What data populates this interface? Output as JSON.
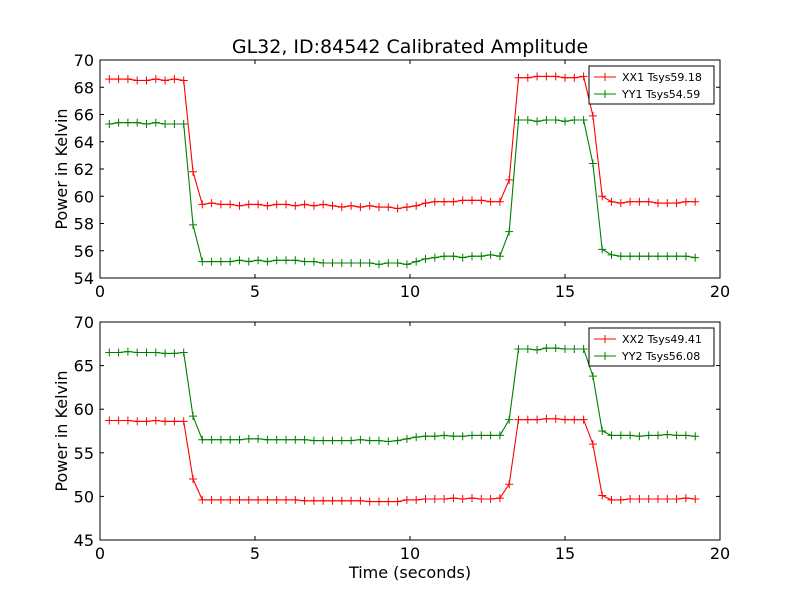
{
  "title": "GL32, ID:84542 Calibrated Amplitude",
  "colors": {
    "red": "#ff0000",
    "green": "#008000",
    "axes": "#000000"
  },
  "chart_data": [
    {
      "type": "line",
      "ylabel": "Power in Kelvin",
      "xlabel": "",
      "xlim": [
        0,
        20
      ],
      "ylim": [
        54,
        70
      ],
      "xticks": [
        0,
        5,
        10,
        15,
        20
      ],
      "yticks": [
        54,
        56,
        58,
        60,
        62,
        64,
        66,
        68,
        70
      ],
      "legend_position": "top-right",
      "x": [
        0.3,
        0.6,
        0.9,
        1.2,
        1.5,
        1.8,
        2.1,
        2.4,
        2.7,
        3.0,
        3.3,
        3.6,
        3.9,
        4.2,
        4.5,
        4.8,
        5.1,
        5.4,
        5.7,
        6.0,
        6.3,
        6.6,
        6.9,
        7.2,
        7.5,
        7.8,
        8.1,
        8.4,
        8.7,
        9.0,
        9.3,
        9.6,
        9.9,
        10.2,
        10.5,
        10.8,
        11.1,
        11.4,
        11.7,
        12.0,
        12.3,
        12.6,
        12.9,
        13.2,
        13.5,
        13.8,
        14.1,
        14.4,
        14.7,
        15.0,
        15.3,
        15.6,
        15.9,
        16.2,
        16.5,
        16.8,
        17.1,
        17.4,
        17.7,
        18.0,
        18.3,
        18.6,
        18.9,
        19.2
      ],
      "series": [
        {
          "name": "XX1 Tsys59.18",
          "color": "#ff0000",
          "values": [
            68.6,
            68.6,
            68.6,
            68.5,
            68.5,
            68.6,
            68.5,
            68.6,
            68.5,
            61.8,
            59.4,
            59.5,
            59.4,
            59.4,
            59.3,
            59.4,
            59.4,
            59.3,
            59.4,
            59.4,
            59.3,
            59.4,
            59.3,
            59.4,
            59.3,
            59.2,
            59.3,
            59.2,
            59.3,
            59.2,
            59.2,
            59.1,
            59.2,
            59.3,
            59.5,
            59.6,
            59.6,
            59.6,
            59.7,
            59.7,
            59.7,
            59.6,
            59.6,
            61.2,
            68.7,
            68.7,
            68.8,
            68.8,
            68.8,
            68.7,
            68.7,
            68.8,
            65.9,
            60.0,
            59.6,
            59.5,
            59.6,
            59.6,
            59.6,
            59.5,
            59.5,
            59.5,
            59.6,
            59.6
          ]
        },
        {
          "name": "YY1 Tsys54.59",
          "color": "#008000",
          "values": [
            65.3,
            65.4,
            65.4,
            65.4,
            65.3,
            65.4,
            65.3,
            65.3,
            65.3,
            57.9,
            55.2,
            55.2,
            55.2,
            55.2,
            55.3,
            55.2,
            55.3,
            55.2,
            55.3,
            55.3,
            55.3,
            55.2,
            55.2,
            55.1,
            55.1,
            55.1,
            55.1,
            55.1,
            55.1,
            55.0,
            55.1,
            55.1,
            55.0,
            55.2,
            55.4,
            55.5,
            55.6,
            55.6,
            55.5,
            55.6,
            55.6,
            55.7,
            55.6,
            57.4,
            65.6,
            65.6,
            65.5,
            65.6,
            65.6,
            65.5,
            65.6,
            65.6,
            62.4,
            56.1,
            55.7,
            55.6,
            55.6,
            55.6,
            55.6,
            55.6,
            55.6,
            55.6,
            55.6,
            55.5
          ]
        }
      ]
    },
    {
      "type": "line",
      "ylabel": "Power in Kelvin",
      "xlabel": "Time (seconds)",
      "xlim": [
        0,
        20
      ],
      "ylim": [
        45,
        70
      ],
      "xticks": [
        0,
        5,
        10,
        15,
        20
      ],
      "yticks": [
        45,
        50,
        55,
        60,
        65,
        70
      ],
      "legend_position": "top-right",
      "x": [
        0.3,
        0.6,
        0.9,
        1.2,
        1.5,
        1.8,
        2.1,
        2.4,
        2.7,
        3.0,
        3.3,
        3.6,
        3.9,
        4.2,
        4.5,
        4.8,
        5.1,
        5.4,
        5.7,
        6.0,
        6.3,
        6.6,
        6.9,
        7.2,
        7.5,
        7.8,
        8.1,
        8.4,
        8.7,
        9.0,
        9.3,
        9.6,
        9.9,
        10.2,
        10.5,
        10.8,
        11.1,
        11.4,
        11.7,
        12.0,
        12.3,
        12.6,
        12.9,
        13.2,
        13.5,
        13.8,
        14.1,
        14.4,
        14.7,
        15.0,
        15.3,
        15.6,
        15.9,
        16.2,
        16.5,
        16.8,
        17.1,
        17.4,
        17.7,
        18.0,
        18.3,
        18.6,
        18.9,
        19.2
      ],
      "series": [
        {
          "name": "XX2 Tsys49.41",
          "color": "#ff0000",
          "values": [
            58.7,
            58.7,
            58.7,
            58.6,
            58.6,
            58.7,
            58.6,
            58.6,
            58.6,
            52.0,
            49.6,
            49.6,
            49.6,
            49.6,
            49.6,
            49.6,
            49.6,
            49.6,
            49.6,
            49.6,
            49.6,
            49.5,
            49.5,
            49.5,
            49.5,
            49.5,
            49.5,
            49.5,
            49.4,
            49.4,
            49.4,
            49.4,
            49.6,
            49.6,
            49.7,
            49.7,
            49.7,
            49.8,
            49.7,
            49.8,
            49.7,
            49.7,
            49.8,
            51.4,
            58.8,
            58.8,
            58.8,
            58.9,
            58.9,
            58.8,
            58.8,
            58.8,
            56.0,
            50.1,
            49.6,
            49.6,
            49.7,
            49.7,
            49.7,
            49.7,
            49.7,
            49.7,
            49.8,
            49.7
          ]
        },
        {
          "name": "YY2 Tsys56.08",
          "color": "#008000",
          "values": [
            66.5,
            66.5,
            66.6,
            66.5,
            66.5,
            66.5,
            66.4,
            66.4,
            66.5,
            59.2,
            56.5,
            56.5,
            56.5,
            56.5,
            56.5,
            56.6,
            56.6,
            56.5,
            56.5,
            56.5,
            56.5,
            56.5,
            56.4,
            56.4,
            56.4,
            56.4,
            56.4,
            56.5,
            56.4,
            56.4,
            56.3,
            56.4,
            56.6,
            56.8,
            56.9,
            56.9,
            57.0,
            56.9,
            56.9,
            57.0,
            57.0,
            57.0,
            57.0,
            58.8,
            66.9,
            66.9,
            66.8,
            67.0,
            67.0,
            66.9,
            66.9,
            66.9,
            63.8,
            57.5,
            57.0,
            57.0,
            57.0,
            56.9,
            57.0,
            57.0,
            57.1,
            57.0,
            57.0,
            56.9
          ]
        }
      ]
    }
  ]
}
